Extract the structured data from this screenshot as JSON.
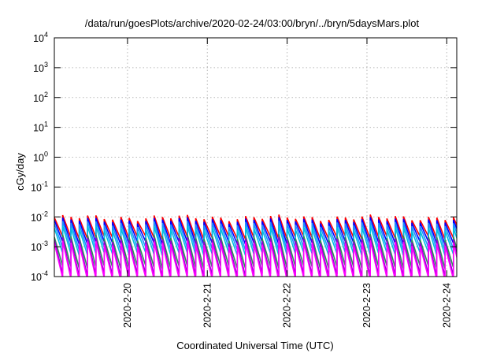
{
  "chart_data": {
    "type": "line",
    "title": "/data/run/goesPlots/archive/2020-02-24/03:00/bryn/../bryn/5daysMars.plot",
    "xlabel": "Coordinated Universal Time (UTC)",
    "ylabel": "cGy/day",
    "yscale": "log",
    "ylim": [
      0.0001,
      10000
    ],
    "xlim": [
      "2020-02-19T02:00",
      "2020-02-24T03:00"
    ],
    "grid": true,
    "y_ticks": [
      {
        "base": "10",
        "exp": "-4"
      },
      {
        "base": "10",
        "exp": "-3"
      },
      {
        "base": "10",
        "exp": "-2"
      },
      {
        "base": "10",
        "exp": "-1"
      },
      {
        "base": "10",
        "exp": "0"
      },
      {
        "base": "10",
        "exp": "1"
      },
      {
        "base": "10",
        "exp": "2"
      },
      {
        "base": "10",
        "exp": "3"
      },
      {
        "base": "10",
        "exp": "4"
      }
    ],
    "x_ticks": [
      {
        "label": "2020-2-20",
        "t": "2020-02-20T00:00"
      },
      {
        "label": "2020-2-21",
        "t": "2020-02-21T00:00"
      },
      {
        "label": "2020-2-22",
        "t": "2020-02-22T00:00"
      },
      {
        "label": "2020-2-23",
        "t": "2020-02-23T00:00"
      },
      {
        "label": "2020-2-24",
        "t": "2020-02-24T00:00"
      }
    ],
    "cycle": {
      "period_hours": 2.5,
      "first_peak": "2020-02-19T02:00"
    },
    "series": [
      {
        "color": "#ff0000",
        "peak": 0.0095,
        "trough": 0.0021
      },
      {
        "color": "#0000ff",
        "peak": 0.0078,
        "trough": 0.0014
      },
      {
        "color": "#1e90ff",
        "peak": 0.006,
        "trough": 0.0009
      },
      {
        "color": "#00c0e0",
        "peak": 0.0042,
        "trough": 0.0006
      },
      {
        "color": "#2e8b57",
        "peak": 0.0021,
        "trough": 0.00022
      },
      {
        "color": "#9400d3",
        "peak": 0.0017,
        "trough": 0.00012
      },
      {
        "color": "#ff00ff",
        "peak": 0.0013,
        "trough": 9e-05
      }
    ]
  }
}
